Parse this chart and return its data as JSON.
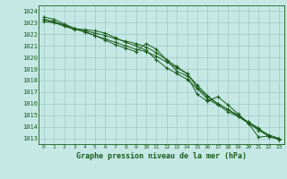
{
  "title": "Graphe pression niveau de la mer (hPa)",
  "background_color": "#c5e8e5",
  "grid_color": "#a0c8c5",
  "line_color": "#1a5c1a",
  "text_color": "#1a5c1a",
  "xlim": [
    -0.5,
    23.5
  ],
  "ylim": [
    1012.5,
    1024.5
  ],
  "yticks": [
    1013,
    1014,
    1015,
    1016,
    1017,
    1018,
    1019,
    1020,
    1021,
    1022,
    1023,
    1024
  ],
  "xticks": [
    0,
    1,
    2,
    3,
    4,
    5,
    6,
    7,
    8,
    9,
    10,
    11,
    12,
    13,
    14,
    15,
    16,
    17,
    18,
    19,
    20,
    21,
    22,
    23
  ],
  "series": [
    [
      1023.1,
      1023.0,
      1022.8,
      1022.5,
      1022.2,
      1021.9,
      1021.5,
      1021.1,
      1020.8,
      1020.5,
      1021.2,
      1020.7,
      1019.8,
      1018.8,
      1018.4,
      1016.8,
      1016.2,
      1016.6,
      1015.9,
      1015.1,
      1014.3,
      1013.1,
      1013.2,
      1012.9
    ],
    [
      1023.5,
      1023.3,
      1022.9,
      1022.5,
      1022.4,
      1022.3,
      1022.1,
      1021.7,
      1021.3,
      1021.0,
      1020.6,
      1019.8,
      1019.1,
      1018.6,
      1018.1,
      1017.3,
      1016.4,
      1015.9,
      1015.3,
      1014.9,
      1014.4,
      1013.9,
      1013.1,
      1013.0
    ],
    [
      1023.3,
      1023.1,
      1022.8,
      1022.5,
      1022.2,
      1021.9,
      1021.6,
      1021.3,
      1021.0,
      1020.7,
      1020.5,
      1020.1,
      1019.6,
      1019.1,
      1018.6,
      1017.4,
      1016.6,
      1016.0,
      1015.5,
      1014.9,
      1014.3,
      1013.7,
      1013.2,
      1012.9
    ],
    [
      1023.3,
      1023.0,
      1022.7,
      1022.4,
      1022.3,
      1022.1,
      1021.9,
      1021.6,
      1021.4,
      1021.2,
      1020.9,
      1020.4,
      1019.8,
      1019.2,
      1018.6,
      1017.6,
      1016.7,
      1016.0,
      1015.5,
      1015.0,
      1014.4,
      1013.8,
      1013.3,
      1013.0
    ]
  ]
}
